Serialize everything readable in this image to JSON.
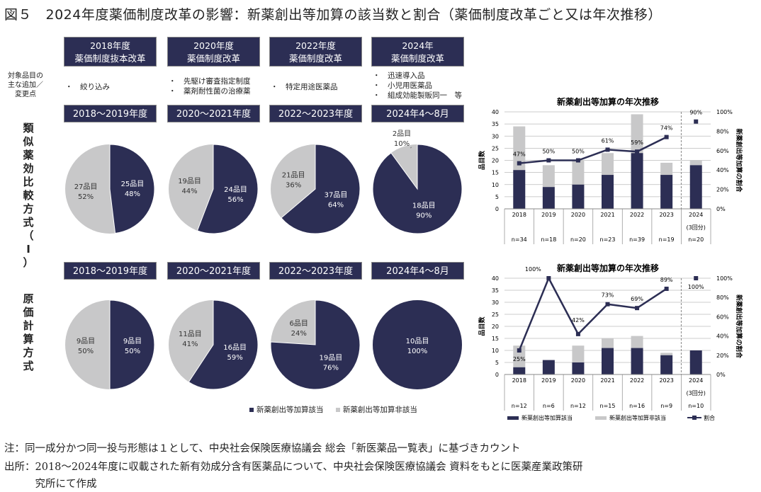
{
  "title": "図５　2024年度薬価制度改革の影響：新薬創出等加算の該当数と割合（薬価制度改革ごと又は年次推移）",
  "side_label": [
    "対象品目の",
    "主な追加／",
    "変更点"
  ],
  "method1": "類似薬効比較方式（Ⅰ）",
  "method2": "原価計算方式",
  "reforms": [
    {
      "year": "2018年度",
      "name": "薬価制度抜本改革",
      "points": [
        "・　絞り込み"
      ]
    },
    {
      "year": "2020年度",
      "name": "薬価制度改革",
      "points": [
        "・　先駆け審査指定制度",
        "・　薬剤耐性菌の治療薬"
      ]
    },
    {
      "year": "2022年度",
      "name": "薬価制度改革",
      "points": [
        "・　特定用途医薬品"
      ]
    },
    {
      "year": "2024年",
      "name": "薬価制度改革",
      "points": [
        "・　迅速導入品",
        "・　小児用医薬品",
        "・　組成効能製販同一　等"
      ]
    }
  ],
  "periods": [
    "2018～2019年度",
    "2020～2021年度",
    "2022～2023年度",
    "2024年4～8月"
  ],
  "colors": {
    "applicable": "#2c2e54",
    "not_applicable": "#c8c8c9"
  },
  "pie_legend": [
    "新薬創出等加算該当",
    "新薬創出等加算非該当"
  ],
  "chart_data": [
    {
      "type": "pie",
      "group": "類似薬効比較方式（Ⅰ）",
      "slices": [
        {
          "period": "2018～2019年度",
          "applicable": 25,
          "applicable_pct": "48%",
          "not_applicable": 27,
          "not_applicable_pct": "52%"
        },
        {
          "period": "2020～2021年度",
          "applicable": 24,
          "applicable_pct": "56%",
          "not_applicable": 19,
          "not_applicable_pct": "44%"
        },
        {
          "period": "2022～2023年度",
          "applicable": 37,
          "applicable_pct": "64%",
          "not_applicable": 21,
          "not_applicable_pct": "36%"
        },
        {
          "period": "2024年4～8月",
          "applicable": 18,
          "applicable_pct": "90%",
          "not_applicable": 2,
          "not_applicable_pct": "10%"
        }
      ]
    },
    {
      "type": "pie",
      "group": "原価計算方式",
      "slices": [
        {
          "period": "2018～2019年度",
          "applicable": 9,
          "applicable_pct": "50%",
          "not_applicable": 9,
          "not_applicable_pct": "50%"
        },
        {
          "period": "2020～2021年度",
          "applicable": 16,
          "applicable_pct": "59%",
          "not_applicable": 11,
          "not_applicable_pct": "41%"
        },
        {
          "period": "2022～2023年度",
          "applicable": 19,
          "applicable_pct": "76%",
          "not_applicable": 6,
          "not_applicable_pct": "24%"
        },
        {
          "period": "2024年4～8月",
          "applicable": 10,
          "applicable_pct": "100%",
          "not_applicable": 0,
          "not_applicable_pct": ""
        }
      ]
    },
    {
      "type": "bar",
      "title": "新薬創出等加算の年次推移",
      "ylabel": "品目数",
      "y2label": "新薬創出等加算の割合",
      "ylim": [
        0,
        40
      ],
      "yticks": [
        "0",
        "5",
        "10",
        "15",
        "20",
        "25",
        "30",
        "35",
        "40"
      ],
      "y2ticks": [
        "0%",
        "20%",
        "40%",
        "60%",
        "80%",
        "100%"
      ],
      "categories": [
        "2018",
        "2019",
        "2020",
        "2021",
        "2022",
        "2023",
        "2024"
      ],
      "sub": [
        "",
        "",
        "",
        "",
        "",
        "",
        "(3回分)"
      ],
      "n": [
        "n=34",
        "n=18",
        "n=20",
        "n=23",
        "n=39",
        "n=19",
        "n=20"
      ],
      "series": [
        {
          "name": "新薬創出等加算該当",
          "values": [
            16,
            9,
            10,
            14,
            23,
            14,
            18
          ]
        },
        {
          "name": "新薬創出等加算非該当",
          "values": [
            18,
            9,
            10,
            9,
            16,
            5,
            2
          ]
        },
        {
          "name": "割合",
          "values": [
            47,
            50,
            50,
            61,
            59,
            74,
            90
          ],
          "labels": [
            "47%",
            "50%",
            "50%",
            "61%",
            "59%",
            "74%",
            "90%"
          ]
        }
      ]
    },
    {
      "type": "bar",
      "title": "新薬創出等加算の年次推移",
      "ylabel": "品目数",
      "y2label": "新薬創出等加算の割合",
      "ylim": [
        0,
        40
      ],
      "yticks": [
        "0",
        "5",
        "10",
        "15",
        "20",
        "25",
        "30",
        "35",
        "40"
      ],
      "y2ticks": [
        "0%",
        "20%",
        "40%",
        "60%",
        "80%",
        "100%"
      ],
      "categories": [
        "2018",
        "2019",
        "2020",
        "2021",
        "2022",
        "2023",
        "2024"
      ],
      "sub": [
        "",
        "",
        "",
        "",
        "",
        "",
        "(3回分)"
      ],
      "n": [
        "n=12",
        "n=6",
        "n=12",
        "n=15",
        "n=16",
        "n=9",
        "n=10"
      ],
      "series": [
        {
          "name": "新薬創出等加算該当",
          "values": [
            3,
            6,
            5,
            11,
            11,
            8,
            10
          ]
        },
        {
          "name": "新薬創出等加算非該当",
          "values": [
            9,
            0,
            7,
            4,
            5,
            1,
            0
          ]
        },
        {
          "name": "割合",
          "values": [
            25,
            100,
            42,
            73,
            69,
            89,
            100
          ],
          "labels": [
            "25%",
            "100%",
            "42%",
            "73%",
            "69%",
            "89%",
            "100%"
          ]
        }
      ],
      "legend": [
        "新薬創出等加算該当",
        "新薬創出等加算非該当",
        "割合"
      ]
    }
  ],
  "notes": [
    "注：同一成分かつ同一投与形態は１として、中央社会保険医療協議会 総会「新医薬品一覧表」に基づきカウント",
    "出所：2018～2024年度に収載された新有効成分含有医薬品について、中央社会保険医療協議会 資料をもとに医薬産業政策研",
    "　　　究所にて作成"
  ]
}
